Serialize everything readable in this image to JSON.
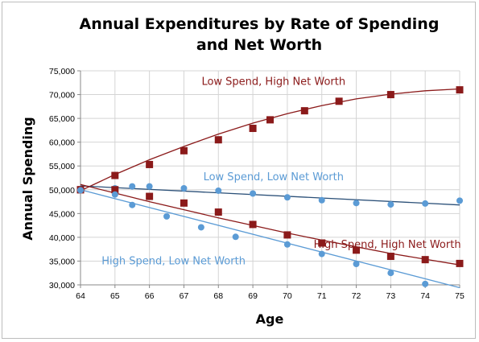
{
  "chart_data": {
    "type": "scatter",
    "title_lines": [
      "Annual Expenditures by Rate of Spending",
      "and Net Worth"
    ],
    "xlabel": "Age",
    "ylabel": "Annual Spending",
    "xlim": [
      64,
      75
    ],
    "ylim": [
      30000,
      75000
    ],
    "xticks": [
      64,
      65,
      66,
      67,
      68,
      69,
      70,
      71,
      72,
      73,
      74,
      75
    ],
    "yticks": [
      30000,
      35000,
      40000,
      45000,
      50000,
      55000,
      60000,
      65000,
      70000,
      75000
    ],
    "ytick_labels": [
      "30,000",
      "35,000",
      "40,000",
      "45,000",
      "50,000",
      "55,000",
      "60,000",
      "65,000",
      "70,000",
      "75,000"
    ],
    "grid": true,
    "series": [
      {
        "name": "Low Spend, High Net Worth",
        "color": "#8b1a1a",
        "marker": "square",
        "points": [
          [
            64,
            50000
          ],
          [
            65,
            53000
          ],
          [
            66,
            55300
          ],
          [
            67,
            58200
          ],
          [
            68,
            60500
          ],
          [
            69,
            62900
          ],
          [
            69.5,
            64700
          ],
          [
            70.5,
            66600
          ],
          [
            71.5,
            68600
          ],
          [
            73,
            70000
          ],
          [
            75,
            71000
          ]
        ],
        "trend": [
          [
            64,
            49800
          ],
          [
            65,
            53200
          ],
          [
            66,
            56300
          ],
          [
            67,
            59100
          ],
          [
            68,
            61700
          ],
          [
            69,
            64000
          ],
          [
            70,
            66000
          ],
          [
            71,
            67700
          ],
          [
            72,
            69100
          ],
          [
            73,
            70100
          ],
          [
            74,
            70800
          ],
          [
            75,
            71200
          ]
        ]
      },
      {
        "name": "Low Spend, Low Net Worth",
        "color": "#5b9bd5",
        "marker": "circle",
        "points": [
          [
            64,
            50000
          ],
          [
            65,
            50300
          ],
          [
            65.5,
            50700
          ],
          [
            66,
            50700
          ],
          [
            67,
            50300
          ],
          [
            68,
            49800
          ],
          [
            69,
            49200
          ],
          [
            70,
            48400
          ],
          [
            71,
            47800
          ],
          [
            72,
            47200
          ],
          [
            73,
            46900
          ],
          [
            74,
            47100
          ],
          [
            75,
            47700
          ]
        ],
        "trend": [
          [
            64,
            50800
          ],
          [
            75,
            46800
          ]
        ],
        "trend_color": "#2b5078"
      },
      {
        "name": "High Spend, High Net Worth",
        "color": "#8b1a1a",
        "marker": "square",
        "points": [
          [
            64,
            50000
          ],
          [
            65,
            50000
          ],
          [
            66,
            48600
          ],
          [
            67,
            47200
          ],
          [
            68,
            45300
          ],
          [
            69,
            42700
          ],
          [
            70,
            40500
          ],
          [
            71,
            38800
          ],
          [
            72,
            37300
          ],
          [
            73,
            36000
          ],
          [
            74,
            35300
          ],
          [
            75,
            34500
          ]
        ],
        "trend": [
          [
            64,
            51100
          ],
          [
            65,
            49300
          ],
          [
            66,
            47500
          ],
          [
            67,
            45800
          ],
          [
            68,
            44100
          ],
          [
            69,
            42500
          ],
          [
            70,
            40900
          ],
          [
            71,
            39400
          ],
          [
            72,
            38000
          ],
          [
            73,
            36600
          ],
          [
            74,
            35400
          ],
          [
            75,
            34200
          ]
        ]
      },
      {
        "name": "High Spend, Low Net Worth",
        "color": "#5b9bd5",
        "marker": "circle",
        "points": [
          [
            64,
            49900
          ],
          [
            65,
            49000
          ],
          [
            65.5,
            46800
          ],
          [
            66.5,
            44400
          ],
          [
            67.5,
            42100
          ],
          [
            68.5,
            40100
          ],
          [
            70,
            38500
          ],
          [
            71,
            36500
          ],
          [
            72,
            34400
          ],
          [
            73,
            32500
          ],
          [
            74,
            30200
          ]
        ],
        "trend": [
          [
            64,
            50000
          ],
          [
            75,
            29400
          ]
        ]
      }
    ],
    "annotations": [
      {
        "text": "Low Spend, High Net Worth",
        "x": 69.6,
        "y": 72000,
        "color": "#8b1a1a"
      },
      {
        "text": "Low Spend, Low Net Worth",
        "x": 69.6,
        "y": 52000,
        "color": "#5b9bd5"
      },
      {
        "text": "High Spend, High Net Worth",
        "x": 72.9,
        "y": 37800,
        "color": "#8b1a1a"
      },
      {
        "text": "High Spend, Low Net Worth",
        "x": 66.7,
        "y": 34300,
        "color": "#5b9bd5"
      }
    ]
  }
}
